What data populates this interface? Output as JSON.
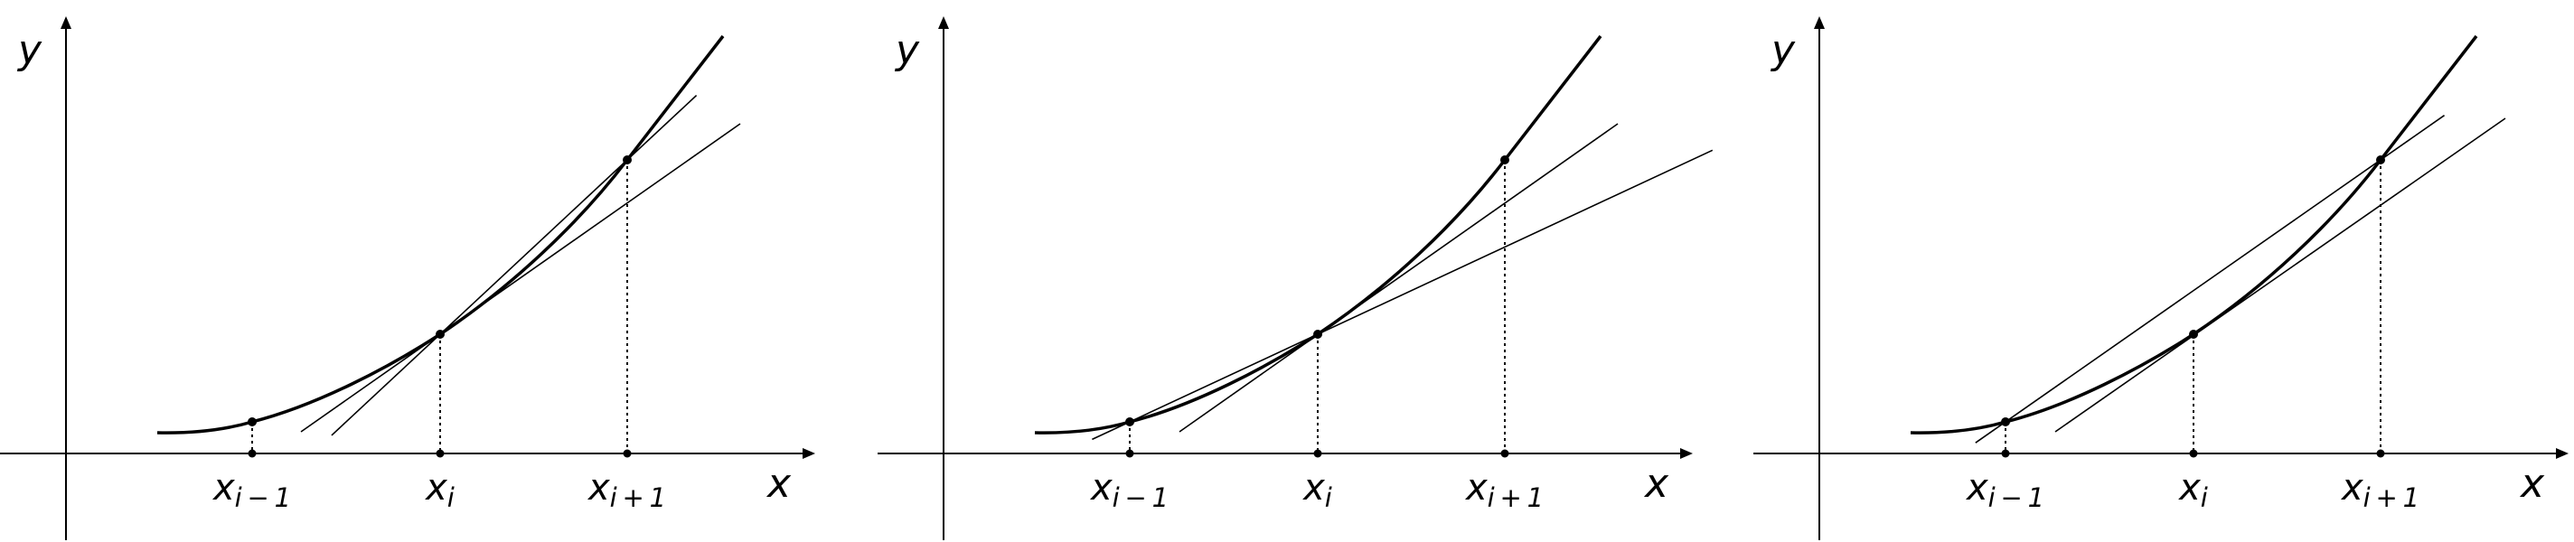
{
  "labels": {
    "x_axis": "x",
    "y_axis": "y",
    "ticks": [
      {
        "base": "x",
        "sub": "i − 1"
      },
      {
        "base": "x",
        "sub": "i"
      },
      {
        "base": "x",
        "sub": "i + 1"
      }
    ]
  },
  "panels": [
    {
      "tangent_lines": [
        "backward",
        "forward"
      ]
    },
    {
      "tangent_lines": [
        "backward",
        "forward"
      ]
    },
    {
      "tangent_lines": [
        "central",
        "parallel-through-x_i"
      ]
    }
  ],
  "colors": {
    "ink": "#000000",
    "background": "#ffffff"
  }
}
